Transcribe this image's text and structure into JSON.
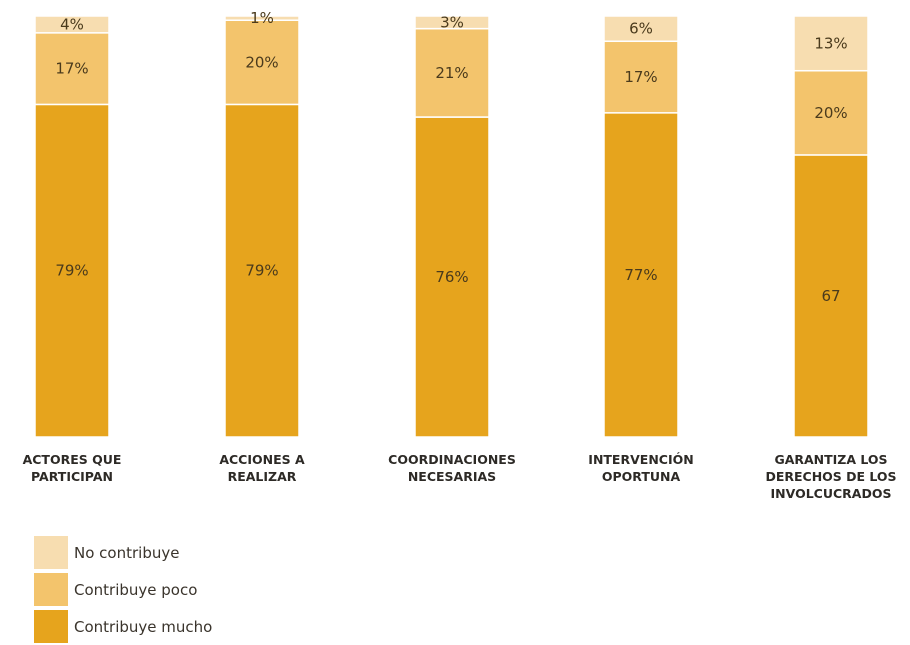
{
  "chart_data": {
    "type": "bar",
    "stacked": true,
    "categories": [
      [
        "ACTORES QUE",
        "PARTICIPAN"
      ],
      [
        "ACCIONES A",
        "REALIZAR"
      ],
      [
        "COORDINACIONES",
        "NECESARIAS"
      ],
      [
        "INTERVENCIÓN",
        "OPORTUNA"
      ],
      [
        "GARANTIZA LOS",
        "DERECHOS DE LOS",
        "INVOLCUCRADOS"
      ]
    ],
    "series": [
      {
        "name": "Contribuye mucho",
        "color": "#e6a41d",
        "values": [
          79,
          79,
          76,
          77,
          67
        ],
        "labels": [
          "79%",
          "79%",
          "76%",
          "77%",
          "67"
        ]
      },
      {
        "name": "Contribuye poco",
        "color": "#f3c46c",
        "values": [
          17,
          20,
          21,
          17,
          20
        ],
        "labels": [
          "17%",
          "20%",
          "21%",
          "17%",
          "20%"
        ]
      },
      {
        "name": "No contribuye",
        "color": "#f7ddb0",
        "values": [
          4,
          1,
          3,
          6,
          13
        ],
        "labels": [
          "4%",
          "1%",
          "3%",
          "6%",
          "13%"
        ]
      }
    ],
    "ylim": [
      0,
      100
    ],
    "legend_position": "bottom-left"
  },
  "legend": {
    "items": [
      {
        "label": "No contribuye",
        "color": "#f7ddb0"
      },
      {
        "label": "Contribuye poco",
        "color": "#f3c46c"
      },
      {
        "label": "Contribuye mucho",
        "color": "#e6a41d"
      }
    ]
  }
}
